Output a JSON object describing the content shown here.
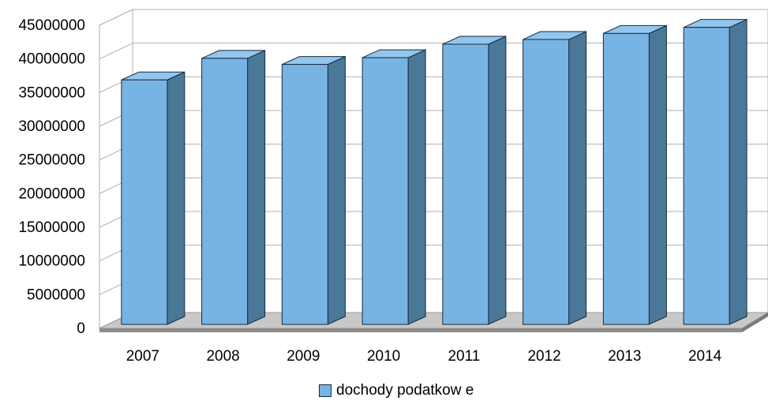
{
  "chart_data": {
    "type": "bar",
    "style": "3d-column",
    "title": "",
    "xlabel": "",
    "ylabel": "",
    "categories": [
      "2007",
      "2008",
      "2009",
      "2010",
      "2011",
      "2012",
      "2013",
      "2014"
    ],
    "series": [
      {
        "name": "dochody podatkow e",
        "values": [
          36300000,
          39500000,
          38600000,
          39600000,
          41600000,
          42300000,
          43200000,
          44100000
        ]
      }
    ],
    "ylim": [
      0,
      45000000
    ],
    "yticks": [
      "0",
      "5000000",
      "10000000",
      "15000000",
      "20000000",
      "25000000",
      "30000000",
      "35000000",
      "40000000",
      "45000000"
    ],
    "grid": true,
    "legend": "bottom",
    "colors": {
      "bar_front": "#78b4e3",
      "bar_side": "#4a7898",
      "bar_top": "#92c6ee",
      "bar_edge": "#1a2a3a",
      "floor": "#c8c8c8",
      "gridline": "#b0b0b0"
    }
  }
}
